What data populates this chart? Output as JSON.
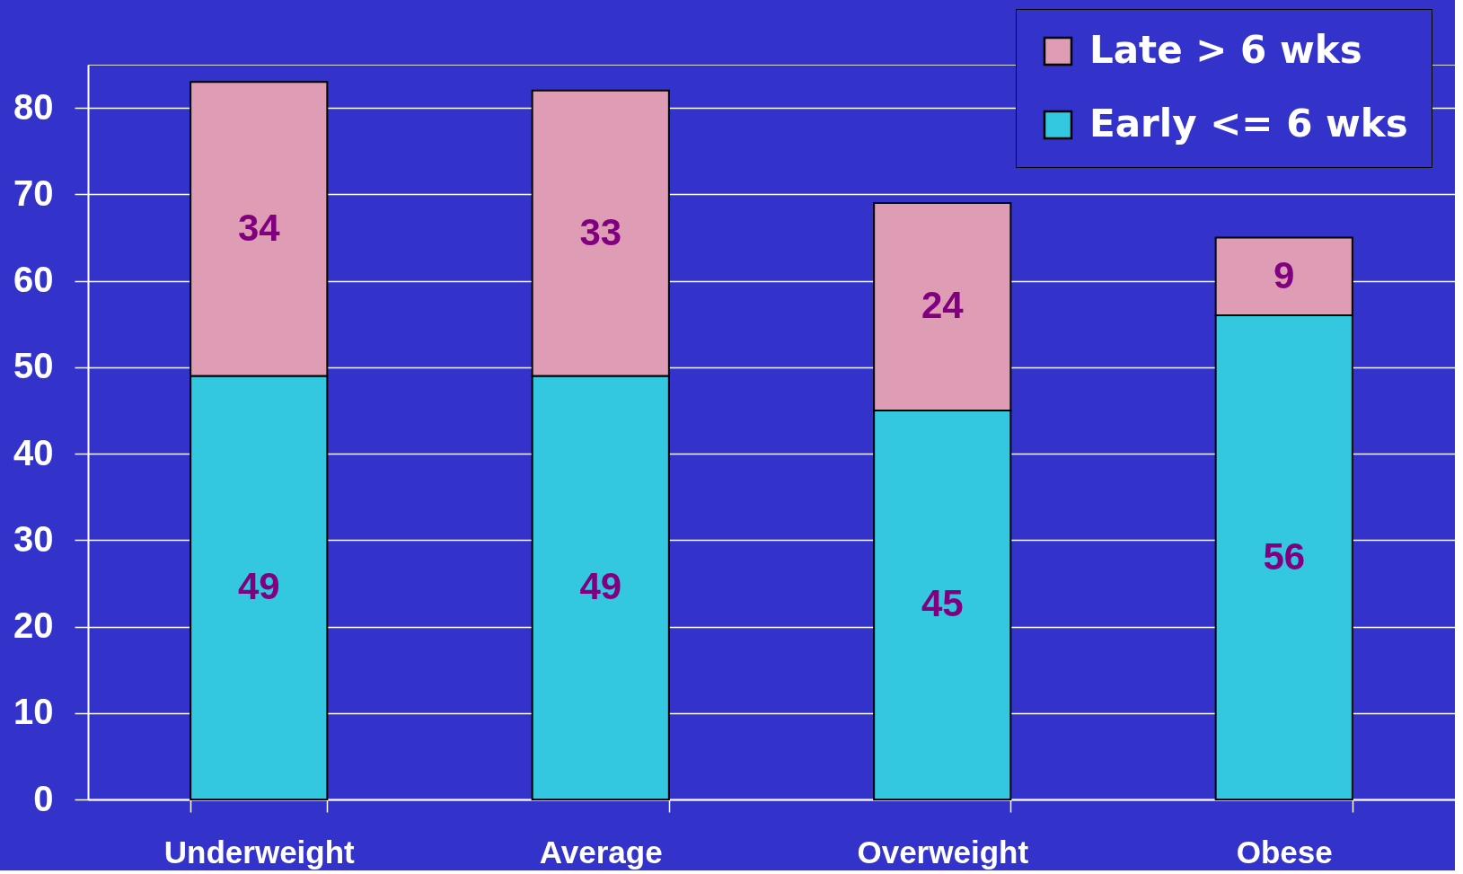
{
  "chart_data": {
    "type": "bar",
    "stacked": true,
    "categories": [
      "Underweight",
      "Average",
      "Overweight",
      "Obese"
    ],
    "series": [
      {
        "name": "Early <= 6 wks",
        "color": "#33c8e0",
        "values": [
          49,
          49,
          45,
          56
        ]
      },
      {
        "name": "Late > 6 wks",
        "color": "#de9db4",
        "values": [
          34,
          33,
          24,
          9
        ]
      }
    ],
    "ylim": [
      0,
      85
    ],
    "yticks": [
      0,
      10,
      20,
      30,
      40,
      50,
      60,
      70,
      80
    ],
    "grid": "y",
    "legend": "top right",
    "data_labels": true
  }
}
